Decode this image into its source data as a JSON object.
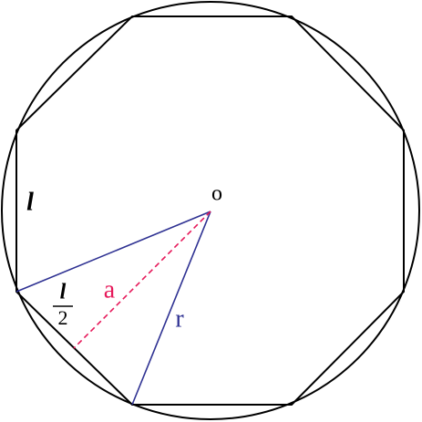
{
  "labels": {
    "center": "o",
    "side": "l",
    "half_side_numerator": "l",
    "half_side_denominator": "2",
    "apothem": "a",
    "radius": "r"
  }
}
